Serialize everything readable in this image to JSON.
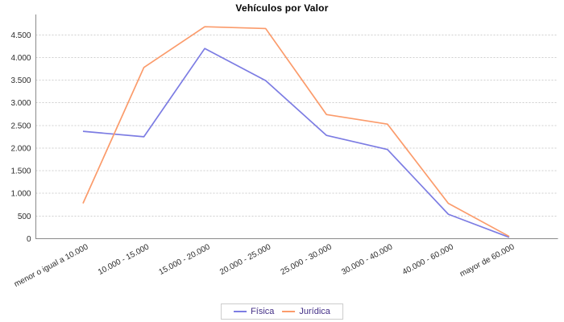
{
  "chart_data": {
    "type": "line",
    "title": "Vehículos por Valor",
    "categories": [
      "menor o igual a 10.000",
      "10.000 - 15.000",
      "15.000 - 20.000",
      "20.000 - 25.000",
      "25.000 - 30.000",
      "30.000 - 40.000",
      "40.000 - 60.000",
      "mayor de 60.000"
    ],
    "series": [
      {
        "name": "Física",
        "color": "#7c7ce3",
        "values": [
          2370,
          2250,
          4200,
          3490,
          2280,
          1970,
          540,
          30
        ]
      },
      {
        "name": "Jurídica",
        "color": "#fb9b6b",
        "values": [
          780,
          3780,
          4680,
          4640,
          2740,
          2530,
          780,
          50
        ]
      }
    ],
    "y_ticks": [
      0,
      500,
      1000,
      1500,
      2000,
      2500,
      3000,
      3500,
      4000,
      4500
    ],
    "y_tick_labels": [
      "0",
      "500",
      "1.000",
      "1.500",
      "2.000",
      "2.500",
      "3.000",
      "3.500",
      "4.000",
      "4.500"
    ],
    "ylim": [
      0,
      4950
    ],
    "xlabel": "",
    "ylabel": "",
    "grid": "horizontal-dashed",
    "legend_position": "bottom-center"
  },
  "colors": {
    "background": "#ffffff",
    "axis": "#8a8a8a",
    "gridline": "#cfcfcf",
    "tick_label": "#2b2b2b",
    "title": "#000000",
    "legend_text": "#443087",
    "legend_border": "#cccccc"
  }
}
